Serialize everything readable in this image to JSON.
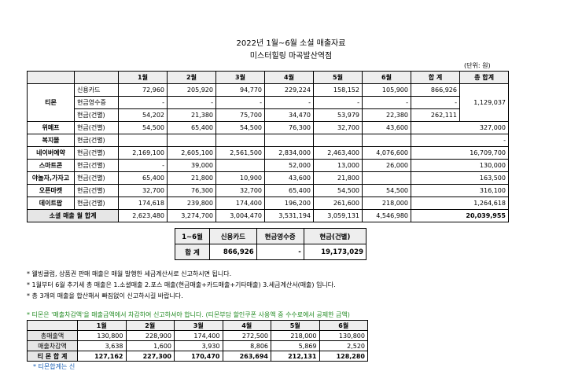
{
  "title": "2022년 1월~6월 소셜 매출자료",
  "subtitle": "미스터힐링 마곡발산역점",
  "unit": "(단위: 원)",
  "main_table": {
    "headers": [
      "",
      "",
      "1월",
      "2월",
      "3월",
      "4월",
      "5월",
      "6월",
      "합  계",
      "총 합계"
    ],
    "tmon": {
      "name": "티몬",
      "rows": [
        {
          "type": "신용카드",
          "months": [
            "72,960",
            "205,920",
            "94,770",
            "229,224",
            "158,152",
            "105,900"
          ],
          "sum": "866,926"
        },
        {
          "type": "현금영수증",
          "months": [
            "-",
            "-",
            "-",
            "-",
            "-",
            "-"
          ],
          "sum": "-"
        },
        {
          "type": "현금(건별)",
          "months": [
            "54,202",
            "21,380",
            "75,700",
            "34,470",
            "53,979",
            "22,380"
          ],
          "sum": "262,111"
        }
      ],
      "total": "1,129,037"
    },
    "rows": [
      {
        "name": "위메프",
        "type": "현금(건별)",
        "months": [
          "54,500",
          "65,400",
          "54,500",
          "76,300",
          "32,700",
          "43,600"
        ],
        "total": "327,000"
      },
      {
        "name": "복지몰",
        "type": "현금(건별)",
        "months": [
          "",
          "",
          "",
          "",
          "",
          ""
        ],
        "total": "-"
      },
      {
        "name": "네이버예약",
        "type": "현금(건별)",
        "months": [
          "2,169,100",
          "2,605,100",
          "2,561,500",
          "2,834,000",
          "2,463,400",
          "4,076,600"
        ],
        "total": "16,709,700"
      },
      {
        "name": "스마트콘",
        "type": "현금(건별)",
        "months": [
          "-",
          "39,000",
          "",
          "52,000",
          "13,000",
          "26,000"
        ],
        "total": "130,000"
      },
      {
        "name": "야놀자,가자고",
        "type": "현금(건별)",
        "months": [
          "65,400",
          "21,800",
          "10,900",
          "43,600",
          "21,800",
          ""
        ],
        "total": "163,500"
      },
      {
        "name": "오픈마켓",
        "type": "현금(건별)",
        "months": [
          "32,700",
          "76,300",
          "32,700",
          "65,400",
          "54,500",
          "54,500"
        ],
        "total": "316,100"
      },
      {
        "name": "데이트팝",
        "type": "현금(건별)",
        "months": [
          "174,618",
          "239,800",
          "174,400",
          "196,200",
          "261,600",
          "218,000"
        ],
        "total": "1,264,618"
      }
    ],
    "grand": {
      "label": "소셜 매출 월 합계",
      "months": [
        "2,623,480",
        "3,274,700",
        "3,004,470",
        "3,531,194",
        "3,059,131",
        "4,546,980"
      ],
      "total": "20,039,955"
    }
  },
  "summary_table": {
    "headers": [
      "1~6월",
      "신용카드",
      "현금영수증",
      "현금(건별)"
    ],
    "label": "합  계",
    "values": [
      "866,926",
      "-",
      "19,173,029"
    ]
  },
  "notes": [
    "* 웰빙클럽, 상품권 판매 매출은 매월 발행한 세금계산서로 신고하시면 됩니다.",
    "* 1월부터 6월 추기세 총 매출은 1.소셜매출 2.포스 매출(현금매출+카드매출+기타매출) 3.세금계산서(매출) 입니다.",
    "* 총 3개의 매출을 합산해서 빠짐없이 신고하시길 바랍니다."
  ],
  "tmon_note": "* 티몬은 '매출차감액'을 매출금액에서 차감하여 신고하셔야 합니다. (티몬부담 할인쿠폰 사용액 중 수수료에서 공제한 금액)",
  "tmon_table": {
    "headers": [
      "",
      "1월",
      "2월",
      "3월",
      "4월",
      "5월",
      "6월"
    ],
    "rows": [
      {
        "label": "총매출액",
        "values": [
          "130,800",
          "228,900",
          "174,400",
          "272,500",
          "218,000",
          "130,800"
        ]
      },
      {
        "label": "매출차감액",
        "values": [
          "3,638",
          "1,600",
          "3,930",
          "8,806",
          "5,869",
          "2,520"
        ]
      },
      {
        "label": "티 몬 합 계",
        "values": [
          "127,162",
          "227,300",
          "170,470",
          "263,694",
          "212,131",
          "128,280"
        ]
      }
    ]
  },
  "bottom_note": "* 티몬합계는 신"
}
